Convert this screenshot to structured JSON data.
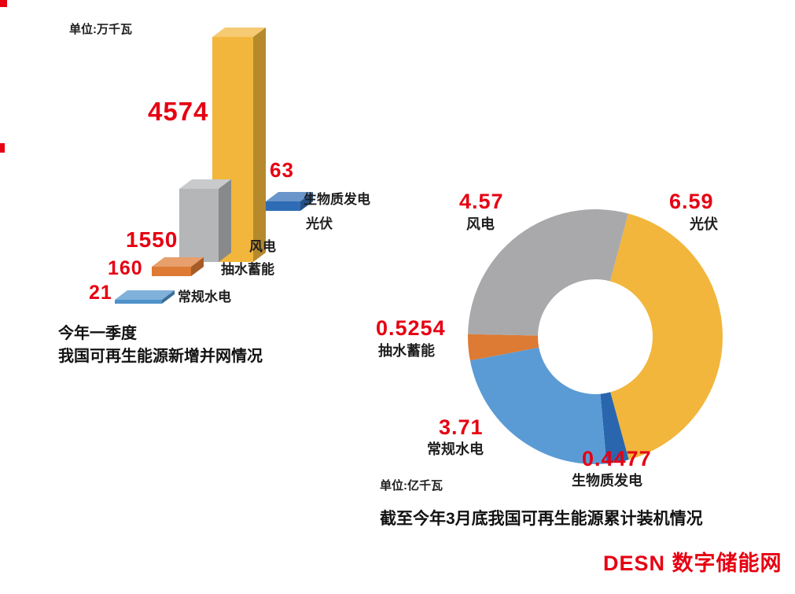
{
  "colors": {
    "accent_red": "#e60012",
    "text_dark": "#1e1e1e",
    "background": "#ffffff"
  },
  "logo": {
    "text": "DESN 数字储能网"
  },
  "chart_data": [
    {
      "type": "bar",
      "style": "3d-cascade",
      "unit": "单位:万千瓦",
      "title_lines": [
        "今年一季度",
        "我国可再生能源新增并网情况"
      ],
      "categories": [
        "光伏",
        "生物质发电",
        "风电",
        "抽水蓄能",
        "常规水电"
      ],
      "values": [
        4574,
        63,
        1550,
        160,
        21
      ],
      "bar_colors": [
        "#f2b63c",
        "#2e6cb5",
        "#b4b6b8",
        "#dd7a33",
        "#4e92cb"
      ],
      "value_label_color": "#e60012",
      "legend_position": "beside-bars",
      "grid": false
    },
    {
      "type": "pie",
      "subtype": "donut",
      "unit": "单位:亿千瓦",
      "title": "截至今年3月底我国可再生能源累计装机情况",
      "categories": [
        "光伏",
        "生物质发电",
        "常规水电",
        "抽水蓄能",
        "风电"
      ],
      "values": [
        6.59,
        0.4477,
        3.71,
        0.5254,
        4.57
      ],
      "segment_colors": [
        "#f2b63c",
        "#2a66ad",
        "#5b9bd5",
        "#dd7a33",
        "#a9a9ab"
      ],
      "start_angle_deg": 15,
      "inner_radius_ratio": 0.45,
      "legend_position": "around",
      "value_label_color": "#e60012"
    }
  ]
}
